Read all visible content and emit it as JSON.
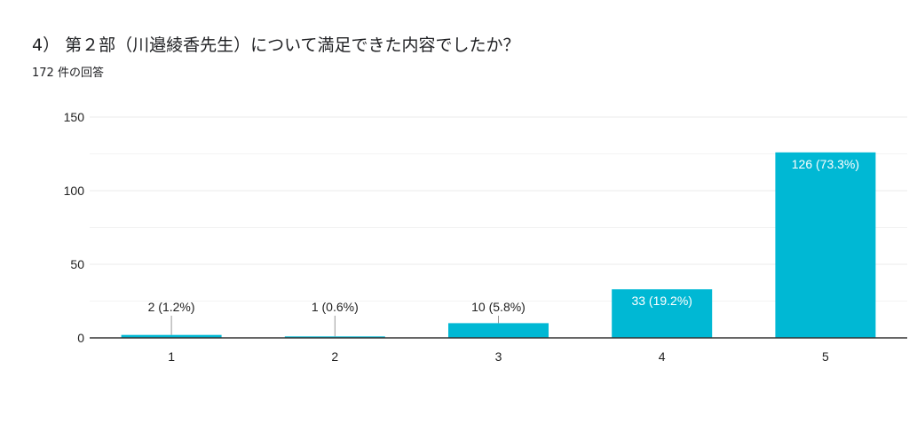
{
  "question": {
    "title": "4） 第２部（川邉綾香先生）について満足できた内容でしたか？",
    "response_count": "172 件の回答"
  },
  "colors": {
    "bar": "#00b8d4",
    "gridline": "#ebebeb",
    "axis": "#333333",
    "text": "#222222",
    "label_inside": "#ffffff"
  },
  "chart_data": {
    "type": "bar",
    "title": "",
    "xlabel": "",
    "ylabel": "",
    "categories": [
      "1",
      "2",
      "3",
      "4",
      "5"
    ],
    "values": [
      2,
      1,
      10,
      33,
      126
    ],
    "data_labels": [
      "2 (1.2%)",
      "1 (0.6%)",
      "10 (5.8%)",
      "33 (19.2%)",
      "126 (73.3%)"
    ],
    "ylim": [
      0,
      150
    ],
    "yticks": [
      0,
      50,
      100,
      150
    ],
    "minor_gridlines": [
      25,
      75,
      125
    ],
    "grid": true,
    "legend": "none"
  }
}
